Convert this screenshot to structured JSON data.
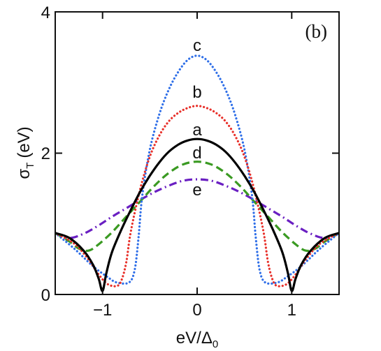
{
  "chart_data": {
    "type": "line",
    "panel_label": "(b)",
    "xlabel": "eV/Δ",
    "xlabel_sub": "0",
    "ylabel": "σ",
    "ylabel_sub": "T",
    "ylabel_unit": "(eV)",
    "xlim": [
      -1.5,
      1.5
    ],
    "ylim": [
      0,
      4
    ],
    "x_ticks": [
      -1,
      0,
      1
    ],
    "x_tick_labels": [
      "−1",
      "0",
      "1"
    ],
    "y_ticks": [
      0,
      2,
      4
    ],
    "y_tick_labels": [
      "0",
      "2",
      "4"
    ],
    "grid": false,
    "legend": "none",
    "series": [
      {
        "name": "a",
        "color": "#000000",
        "style": "solid",
        "x": [
          -1.5,
          -1.35,
          -1.2,
          -1.1,
          -1.04,
          -1.0,
          -0.96,
          -0.9,
          -0.8,
          -0.7,
          -0.6,
          -0.5,
          -0.4,
          -0.3,
          -0.2,
          -0.1,
          0,
          0.1,
          0.2,
          0.3,
          0.4,
          0.5,
          0.6,
          0.7,
          0.8,
          0.9,
          0.96,
          1.0,
          1.04,
          1.1,
          1.2,
          1.35,
          1.5
        ],
        "y": [
          0.87,
          0.8,
          0.62,
          0.42,
          0.22,
          0.05,
          0.3,
          0.6,
          0.92,
          1.2,
          1.46,
          1.68,
          1.87,
          2.02,
          2.12,
          2.18,
          2.2,
          2.18,
          2.12,
          2.02,
          1.87,
          1.68,
          1.46,
          1.2,
          0.92,
          0.6,
          0.3,
          0.05,
          0.22,
          0.42,
          0.62,
          0.8,
          0.87
        ]
      },
      {
        "name": "b",
        "color": "#e8302a",
        "style": "dotted",
        "x": [
          -1.5,
          -1.3,
          -1.15,
          -1.05,
          -0.95,
          -0.85,
          -0.8,
          -0.75,
          -0.7,
          -0.6,
          -0.5,
          -0.4,
          -0.3,
          -0.2,
          -0.1,
          0,
          0.1,
          0.2,
          0.3,
          0.4,
          0.5,
          0.6,
          0.7,
          0.75,
          0.8,
          0.85,
          0.95,
          1.05,
          1.15,
          1.3,
          1.5
        ],
        "y": [
          0.87,
          0.72,
          0.5,
          0.3,
          0.15,
          0.12,
          0.2,
          0.45,
          0.9,
          1.5,
          1.95,
          2.25,
          2.45,
          2.57,
          2.64,
          2.67,
          2.64,
          2.57,
          2.45,
          2.25,
          1.95,
          1.5,
          0.9,
          0.45,
          0.2,
          0.12,
          0.15,
          0.3,
          0.5,
          0.72,
          0.87
        ]
      },
      {
        "name": "c",
        "color": "#2f6fe8",
        "style": "dotted",
        "x": [
          -1.5,
          -1.3,
          -1.1,
          -0.95,
          -0.85,
          -0.72,
          -0.66,
          -0.62,
          -0.58,
          -0.5,
          -0.4,
          -0.3,
          -0.2,
          -0.1,
          0,
          0.1,
          0.2,
          0.3,
          0.4,
          0.5,
          0.58,
          0.62,
          0.66,
          0.72,
          0.85,
          0.95,
          1.1,
          1.3,
          1.5
        ],
        "y": [
          0.87,
          0.65,
          0.4,
          0.25,
          0.17,
          0.17,
          0.35,
          0.8,
          1.4,
          2.05,
          2.55,
          2.9,
          3.15,
          3.32,
          3.38,
          3.32,
          3.15,
          2.9,
          2.55,
          2.05,
          1.4,
          0.8,
          0.35,
          0.17,
          0.17,
          0.25,
          0.4,
          0.65,
          0.87
        ]
      },
      {
        "name": "d",
        "color": "#3a9a22",
        "style": "dashed",
        "x": [
          -1.5,
          -1.35,
          -1.25,
          -1.15,
          -1.05,
          -0.9,
          -0.75,
          -0.6,
          -0.45,
          -0.3,
          -0.15,
          0,
          0.15,
          0.3,
          0.45,
          0.6,
          0.75,
          0.9,
          1.05,
          1.15,
          1.25,
          1.35,
          1.5
        ],
        "y": [
          0.87,
          0.75,
          0.65,
          0.62,
          0.7,
          0.88,
          1.1,
          1.32,
          1.54,
          1.72,
          1.84,
          1.88,
          1.84,
          1.72,
          1.54,
          1.32,
          1.1,
          0.88,
          0.7,
          0.62,
          0.65,
          0.75,
          0.87
        ]
      },
      {
        "name": "e",
        "color": "#6a1fc2",
        "style": "dashdot",
        "x": [
          -1.5,
          -1.35,
          -1.2,
          -1.05,
          -0.9,
          -0.75,
          -0.6,
          -0.45,
          -0.3,
          -0.15,
          0,
          0.15,
          0.3,
          0.45,
          0.6,
          0.75,
          0.9,
          1.05,
          1.2,
          1.35,
          1.5
        ],
        "y": [
          0.87,
          0.8,
          0.86,
          0.97,
          1.1,
          1.22,
          1.34,
          1.45,
          1.54,
          1.61,
          1.63,
          1.61,
          1.54,
          1.45,
          1.34,
          1.22,
          1.1,
          0.97,
          0.86,
          0.8,
          0.87
        ]
      }
    ]
  }
}
